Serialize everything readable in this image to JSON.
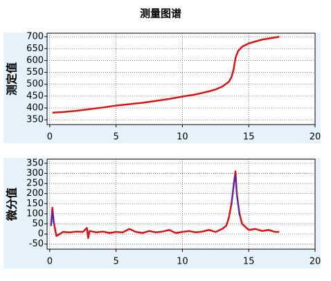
{
  "title": "测量图谱",
  "chart_data": [
    {
      "type": "line",
      "y_label": "测定值",
      "x": [
        0.2,
        1,
        2,
        3,
        4,
        5,
        6,
        7,
        8,
        9,
        10,
        11,
        12,
        12.5,
        13,
        13.5,
        13.7,
        13.85,
        14,
        14.2,
        14.5,
        15,
        16,
        17.3
      ],
      "series": [
        {
          "color": "#e01010",
          "values": [
            380,
            383,
            388,
            395,
            402,
            410,
            416,
            422,
            430,
            438,
            448,
            457,
            470,
            478,
            490,
            510,
            530,
            560,
            610,
            640,
            658,
            672,
            688,
            700
          ]
        }
      ],
      "xlim": [
        -0.2,
        20
      ],
      "xticks": [
        0,
        5,
        10,
        15,
        20
      ],
      "ylim": [
        330,
        715
      ],
      "yticks": [
        350,
        400,
        450,
        500,
        550,
        600,
        650,
        700
      ],
      "grid": true
    },
    {
      "type": "line",
      "y_label": "微分值",
      "x": [
        0.1,
        0.2,
        0.3,
        0.5,
        1,
        1.5,
        2,
        2.5,
        2.8,
        2.9,
        3,
        3.5,
        4,
        4.5,
        5,
        5.5,
        6,
        6.5,
        7,
        7.5,
        8,
        8.5,
        9,
        9.5,
        10,
        10.5,
        11,
        11.5,
        12,
        12.5,
        13,
        13.3,
        13.5,
        13.7,
        13.9,
        14,
        14.1,
        14.3,
        14.5,
        15,
        15.5,
        16,
        16.5,
        17,
        17.3
      ],
      "series": [
        {
          "color": "#e01010",
          "values": [
            40,
            130,
            60,
            -10,
            10,
            8,
            12,
            10,
            30,
            -20,
            15,
            8,
            12,
            5,
            10,
            8,
            25,
            10,
            5,
            15,
            8,
            12,
            20,
            5,
            10,
            15,
            8,
            12,
            20,
            10,
            25,
            40,
            80,
            150,
            260,
            310,
            200,
            100,
            50,
            20,
            25,
            15,
            20,
            10,
            10
          ]
        },
        {
          "color": "#2030e0",
          "values": [
            40,
            110,
            50,
            null,
            null,
            null,
            null,
            null,
            null,
            null,
            null,
            null,
            null,
            null,
            null,
            null,
            null,
            null,
            null,
            null,
            null,
            null,
            null,
            null,
            null,
            null,
            null,
            null,
            null,
            null,
            null,
            null,
            null,
            140,
            250,
            290,
            190,
            90,
            null,
            null,
            null,
            null,
            null,
            null,
            null
          ]
        }
      ],
      "xlim": [
        -0.2,
        20
      ],
      "xticks": [
        0,
        5,
        10,
        15,
        20
      ],
      "ylim": [
        -75,
        370
      ],
      "yticks": [
        -50,
        0,
        50,
        100,
        150,
        200,
        250,
        300,
        350
      ],
      "grid": true
    }
  ]
}
